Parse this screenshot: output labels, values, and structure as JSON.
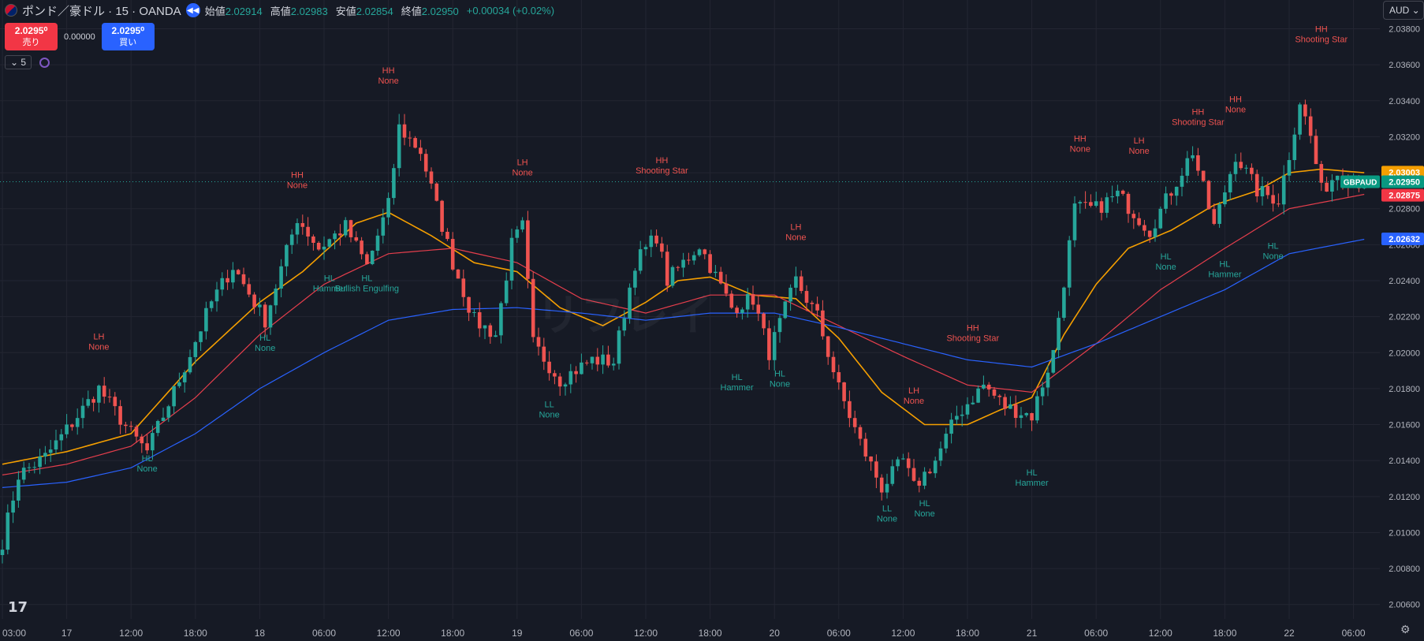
{
  "header": {
    "symbol": "ポンド／豪ドル · 15 · OANDA",
    "ohlc": [
      {
        "label": "始値",
        "value": "2.02914"
      },
      {
        "label": "高値",
        "value": "2.02983"
      },
      {
        "label": "安値",
        "value": "2.02854"
      },
      {
        "label": "終値",
        "value": "2.02950"
      }
    ],
    "change": "+0.00034 (+0.02%)"
  },
  "trade": {
    "sell_price": "2.0295⁰",
    "sell_label": "売り",
    "spread": "0.00000",
    "buy_price": "2.0295⁰",
    "buy_label": "買い"
  },
  "indicator_count": "5",
  "currency": "AUD",
  "watermark": "リフレイ",
  "colors": {
    "background": "#161a25",
    "up": "#26a69a",
    "down": "#ef5350",
    "ma_fast": "#f59f00",
    "ma_mid": "#e53e4c",
    "ma_slow": "#2962ff"
  },
  "chart_data": {
    "type": "candlestick",
    "instrument": "GBPAUD",
    "interval": "15",
    "y_ticks": [
      "2.03800",
      "2.03600",
      "2.03400",
      "2.03200",
      "2.03000",
      "2.02800",
      "2.02600",
      "2.02400",
      "2.02200",
      "2.02000",
      "2.01800",
      "2.01600",
      "2.01400",
      "2.01200",
      "2.01000",
      "2.00800",
      "2.00600"
    ],
    "ylim": [
      2.0052,
      2.0396
    ],
    "x_ticks": [
      {
        "label": "03:00",
        "i": 0
      },
      {
        "label": "17",
        "i": 12
      },
      {
        "label": "12:00",
        "i": 24
      },
      {
        "label": "18:00",
        "i": 36
      },
      {
        "label": "18",
        "i": 48
      },
      {
        "label": "06:00",
        "i": 60
      },
      {
        "label": "12:00",
        "i": 72
      },
      {
        "label": "18:00",
        "i": 84
      },
      {
        "label": "19",
        "i": 96
      },
      {
        "label": "06:00",
        "i": 108
      },
      {
        "label": "12:00",
        "i": 120
      },
      {
        "label": "18:00",
        "i": 132
      },
      {
        "label": "20",
        "i": 144
      },
      {
        "label": "06:00",
        "i": 156
      },
      {
        "label": "12:00",
        "i": 168
      },
      {
        "label": "18:00",
        "i": 180
      },
      {
        "label": "21",
        "i": 192
      },
      {
        "label": "06:00",
        "i": 204
      },
      {
        "label": "12:00",
        "i": 216
      },
      {
        "label": "18:00",
        "i": 228
      },
      {
        "label": "22",
        "i": 240
      },
      {
        "label": "06:00",
        "i": 252
      }
    ],
    "anchors": [
      {
        "i": 0,
        "v": 2.0095
      },
      {
        "i": 3,
        "v": 2.0132
      },
      {
        "i": 8,
        "v": 2.0142
      },
      {
        "i": 18,
        "v": 2.018
      },
      {
        "i": 24,
        "v": 2.0155
      },
      {
        "i": 27,
        "v": 2.0145
      },
      {
        "i": 33,
        "v": 2.0185
      },
      {
        "i": 39,
        "v": 2.0228
      },
      {
        "i": 43,
        "v": 2.0248
      },
      {
        "i": 49,
        "v": 2.0218
      },
      {
        "i": 55,
        "v": 2.0275
      },
      {
        "i": 59,
        "v": 2.0258
      },
      {
        "i": 64,
        "v": 2.027
      },
      {
        "i": 68,
        "v": 2.0248
      },
      {
        "i": 72,
        "v": 2.0282
      },
      {
        "i": 74,
        "v": 2.0325
      },
      {
        "i": 78,
        "v": 2.0312
      },
      {
        "i": 84,
        "v": 2.025
      },
      {
        "i": 88,
        "v": 2.0218
      },
      {
        "i": 92,
        "v": 2.021
      },
      {
        "i": 95,
        "v": 2.026
      },
      {
        "i": 97,
        "v": 2.027
      },
      {
        "i": 99,
        "v": 2.0205
      },
      {
        "i": 104,
        "v": 2.0185
      },
      {
        "i": 110,
        "v": 2.0196
      },
      {
        "i": 114,
        "v": 2.0195
      },
      {
        "i": 118,
        "v": 2.025
      },
      {
        "i": 122,
        "v": 2.0265
      },
      {
        "i": 124,
        "v": 2.024
      },
      {
        "i": 130,
        "v": 2.026
      },
      {
        "i": 136,
        "v": 2.0225
      },
      {
        "i": 140,
        "v": 2.023
      },
      {
        "i": 143,
        "v": 2.02
      },
      {
        "i": 148,
        "v": 2.024
      },
      {
        "i": 152,
        "v": 2.022
      },
      {
        "i": 156,
        "v": 2.018
      },
      {
        "i": 160,
        "v": 2.015
      },
      {
        "i": 164,
        "v": 2.0125
      },
      {
        "i": 168,
        "v": 2.014
      },
      {
        "i": 170,
        "v": 2.0125
      },
      {
        "i": 174,
        "v": 2.014
      },
      {
        "i": 178,
        "v": 2.0165
      },
      {
        "i": 183,
        "v": 2.0182
      },
      {
        "i": 187,
        "v": 2.017
      },
      {
        "i": 192,
        "v": 2.0165
      },
      {
        "i": 196,
        "v": 2.02
      },
      {
        "i": 200,
        "v": 2.028
      },
      {
        "i": 204,
        "v": 2.028
      },
      {
        "i": 208,
        "v": 2.0288
      },
      {
        "i": 214,
        "v": 2.0268
      },
      {
        "i": 218,
        "v": 2.029
      },
      {
        "i": 222,
        "v": 2.0312
      },
      {
        "i": 226,
        "v": 2.027
      },
      {
        "i": 230,
        "v": 2.031
      },
      {
        "i": 234,
        "v": 2.029
      },
      {
        "i": 238,
        "v": 2.0285
      },
      {
        "i": 240,
        "v": 2.031
      },
      {
        "i": 242,
        "v": 2.034
      },
      {
        "i": 244,
        "v": 2.032
      },
      {
        "i": 246,
        "v": 2.029
      },
      {
        "i": 249,
        "v": 2.03
      },
      {
        "i": 252,
        "v": 2.0295
      },
      {
        "i": 254,
        "v": 2.0295
      }
    ],
    "moving_averages": [
      {
        "color": "#f59f00",
        "width": 1.6,
        "anchors": [
          {
            "i": 0,
            "v": 2.0138
          },
          {
            "i": 12,
            "v": 2.0145
          },
          {
            "i": 24,
            "v": 2.0155
          },
          {
            "i": 36,
            "v": 2.0195
          },
          {
            "i": 48,
            "v": 2.0228
          },
          {
            "i": 56,
            "v": 2.0245
          },
          {
            "i": 66,
            "v": 2.0272
          },
          {
            "i": 72,
            "v": 2.0278
          },
          {
            "i": 80,
            "v": 2.0265
          },
          {
            "i": 88,
            "v": 2.025
          },
          {
            "i": 96,
            "v": 2.0245
          },
          {
            "i": 104,
            "v": 2.0225
          },
          {
            "i": 112,
            "v": 2.0215
          },
          {
            "i": 120,
            "v": 2.0228
          },
          {
            "i": 126,
            "v": 2.024
          },
          {
            "i": 132,
            "v": 2.0242
          },
          {
            "i": 140,
            "v": 2.0232
          },
          {
            "i": 148,
            "v": 2.023
          },
          {
            "i": 156,
            "v": 2.0208
          },
          {
            "i": 164,
            "v": 2.0178
          },
          {
            "i": 172,
            "v": 2.016
          },
          {
            "i": 180,
            "v": 2.016
          },
          {
            "i": 186,
            "v": 2.0168
          },
          {
            "i": 192,
            "v": 2.0175
          },
          {
            "i": 198,
            "v": 2.021
          },
          {
            "i": 204,
            "v": 2.0238
          },
          {
            "i": 210,
            "v": 2.0258
          },
          {
            "i": 218,
            "v": 2.0268
          },
          {
            "i": 226,
            "v": 2.0282
          },
          {
            "i": 234,
            "v": 2.029
          },
          {
            "i": 240,
            "v": 2.03
          },
          {
            "i": 246,
            "v": 2.0302
          },
          {
            "i": 254,
            "v": 2.03
          }
        ]
      },
      {
        "color": "#e53e4c",
        "width": 1.2,
        "anchors": [
          {
            "i": 0,
            "v": 2.0132
          },
          {
            "i": 12,
            "v": 2.0138
          },
          {
            "i": 24,
            "v": 2.0148
          },
          {
            "i": 36,
            "v": 2.0175
          },
          {
            "i": 48,
            "v": 2.021
          },
          {
            "i": 60,
            "v": 2.0238
          },
          {
            "i": 72,
            "v": 2.0255
          },
          {
            "i": 84,
            "v": 2.0258
          },
          {
            "i": 96,
            "v": 2.025
          },
          {
            "i": 108,
            "v": 2.023
          },
          {
            "i": 120,
            "v": 2.0222
          },
          {
            "i": 132,
            "v": 2.0232
          },
          {
            "i": 144,
            "v": 2.0232
          },
          {
            "i": 156,
            "v": 2.0215
          },
          {
            "i": 168,
            "v": 2.0198
          },
          {
            "i": 180,
            "v": 2.0182
          },
          {
            "i": 192,
            "v": 2.0178
          },
          {
            "i": 204,
            "v": 2.0205
          },
          {
            "i": 216,
            "v": 2.0235
          },
          {
            "i": 228,
            "v": 2.0258
          },
          {
            "i": 240,
            "v": 2.028
          },
          {
            "i": 254,
            "v": 2.0288
          }
        ]
      },
      {
        "color": "#2962ff",
        "width": 1.2,
        "anchors": [
          {
            "i": 0,
            "v": 2.0125
          },
          {
            "i": 12,
            "v": 2.0128
          },
          {
            "i": 24,
            "v": 2.0136
          },
          {
            "i": 36,
            "v": 2.0155
          },
          {
            "i": 48,
            "v": 2.018
          },
          {
            "i": 60,
            "v": 2.02
          },
          {
            "i": 72,
            "v": 2.0218
          },
          {
            "i": 84,
            "v": 2.0224
          },
          {
            "i": 96,
            "v": 2.0225
          },
          {
            "i": 108,
            "v": 2.0222
          },
          {
            "i": 120,
            "v": 2.0218
          },
          {
            "i": 132,
            "v": 2.0222
          },
          {
            "i": 144,
            "v": 2.0222
          },
          {
            "i": 156,
            "v": 2.0214
          },
          {
            "i": 168,
            "v": 2.0205
          },
          {
            "i": 180,
            "v": 2.0196
          },
          {
            "i": 192,
            "v": 2.0192
          },
          {
            "i": 204,
            "v": 2.0205
          },
          {
            "i": 216,
            "v": 2.022
          },
          {
            "i": 228,
            "v": 2.0235
          },
          {
            "i": 240,
            "v": 2.0255
          },
          {
            "i": 254,
            "v": 2.0263
          }
        ]
      }
    ],
    "labels": [
      {
        "i": 18,
        "v": 2.0195,
        "pos": "above",
        "type": "high",
        "l1": "LH",
        "l2": "None"
      },
      {
        "i": 27,
        "v": 2.0145,
        "pos": "below",
        "type": "low",
        "l1": "HL",
        "l2": "None"
      },
      {
        "i": 55,
        "v": 2.0285,
        "pos": "above",
        "type": "high",
        "l1": "HH",
        "l2": "None"
      },
      {
        "i": 49,
        "v": 2.0212,
        "pos": "below",
        "type": "low",
        "l1": "HL",
        "l2": "None"
      },
      {
        "i": 61,
        "v": 2.0245,
        "pos": "below",
        "type": "low",
        "l1": "HL",
        "l2": "Hammer"
      },
      {
        "i": 68,
        "v": 2.0245,
        "pos": "below",
        "type": "low",
        "l1": "HL",
        "l2": "Bullish Engulfing"
      },
      {
        "i": 72,
        "v": 2.0343,
        "pos": "above",
        "type": "high",
        "l1": "HH",
        "l2": "None"
      },
      {
        "i": 97,
        "v": 2.0292,
        "pos": "above",
        "type": "high",
        "l1": "LH",
        "l2": "None"
      },
      {
        "i": 102,
        "v": 2.0175,
        "pos": "below",
        "type": "low",
        "l1": "LL",
        "l2": "None"
      },
      {
        "i": 123,
        "v": 2.0293,
        "pos": "above",
        "type": "high",
        "l1": "HH",
        "l2": "Shooting Star"
      },
      {
        "i": 137,
        "v": 2.019,
        "pos": "below",
        "type": "low",
        "l1": "HL",
        "l2": "Hammer"
      },
      {
        "i": 145,
        "v": 2.0192,
        "pos": "below",
        "type": "low",
        "l1": "HL",
        "l2": "None"
      },
      {
        "i": 148,
        "v": 2.0256,
        "pos": "above",
        "type": "high",
        "l1": "LH",
        "l2": "None"
      },
      {
        "i": 165,
        "v": 2.0117,
        "pos": "below",
        "type": "low",
        "l1": "LL",
        "l2": "None"
      },
      {
        "i": 172,
        "v": 2.012,
        "pos": "below",
        "type": "low",
        "l1": "HL",
        "l2": "None"
      },
      {
        "i": 170,
        "v": 2.0165,
        "pos": "above",
        "type": "high",
        "l1": "LH",
        "l2": "None"
      },
      {
        "i": 181,
        "v": 2.02,
        "pos": "above",
        "type": "high",
        "l1": "HH",
        "l2": "Shooting Star"
      },
      {
        "i": 192,
        "v": 2.0137,
        "pos": "below",
        "type": "low",
        "l1": "HL",
        "l2": "Hammer"
      },
      {
        "i": 201,
        "v": 2.0305,
        "pos": "above",
        "type": "high",
        "l1": "HH",
        "l2": "None"
      },
      {
        "i": 212,
        "v": 2.0304,
        "pos": "above",
        "type": "high",
        "l1": "LH",
        "l2": "None"
      },
      {
        "i": 217,
        "v": 2.0257,
        "pos": "below",
        "type": "low",
        "l1": "HL",
        "l2": "None"
      },
      {
        "i": 223,
        "v": 2.032,
        "pos": "above",
        "type": "high",
        "l1": "HH",
        "l2": "Shooting Star"
      },
      {
        "i": 228,
        "v": 2.0253,
        "pos": "below",
        "type": "low",
        "l1": "HL",
        "l2": "Hammer"
      },
      {
        "i": 230,
        "v": 2.0327,
        "pos": "above",
        "type": "high",
        "l1": "HH",
        "l2": "None"
      },
      {
        "i": 237,
        "v": 2.0263,
        "pos": "below",
        "type": "low",
        "l1": "HL",
        "l2": "None"
      },
      {
        "i": 246,
        "v": 2.0366,
        "pos": "above",
        "type": "high",
        "l1": "HH",
        "l2": "Shooting Star"
      }
    ],
    "price_tags": [
      {
        "text": "2.03003",
        "v": 2.03003,
        "color": "#f59f00",
        "label": ""
      },
      {
        "text": "2.02950",
        "v": 2.0295,
        "color": "#089981",
        "label": "GBPAUD"
      },
      {
        "text": "2.02875",
        "v": 2.02875,
        "color": "#f23645",
        "label": ""
      },
      {
        "text": "2.02632",
        "v": 2.02632,
        "color": "#2962ff",
        "label": ""
      }
    ],
    "last_price": 2.0295
  }
}
